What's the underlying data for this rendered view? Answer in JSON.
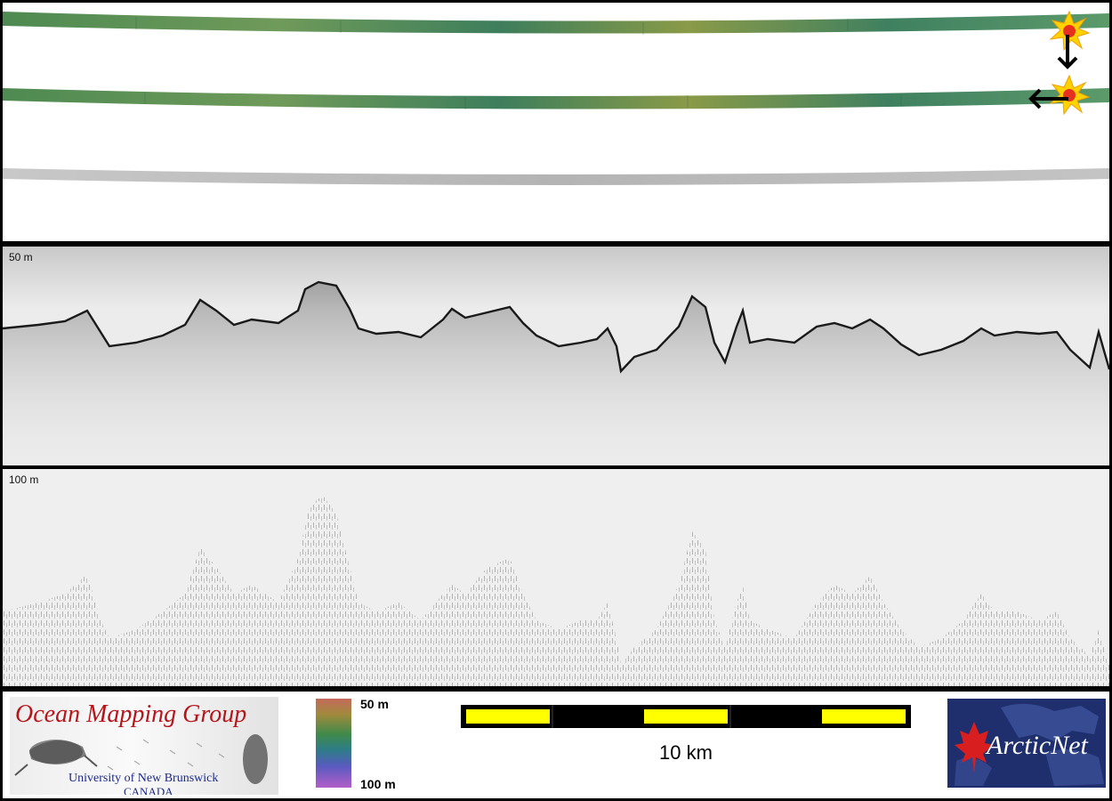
{
  "echograms": {
    "upper_depth_label": "50 m",
    "lower_depth_label": "100 m"
  },
  "legend": {
    "colorbar_top_label": "50 m",
    "colorbar_bottom_label": "100 m",
    "scale_label": "10 km"
  },
  "logos": {
    "omg_title": "Ocean Mapping Group",
    "omg_university": "University of New Brunswick",
    "omg_country": "CANADA",
    "arcticnet_name": "ArcticNet"
  },
  "colors": {
    "scale_bar_fill": "#ffff00",
    "scale_bar_segment": "#000000",
    "marker_star": "#ffd200",
    "marker_center": "#e8301e",
    "omg_title_color": "#b5161b",
    "arcticnet_background": "#1f2f6e"
  },
  "icons": {
    "start_marker": "star-burst-icon",
    "direction_down": "arrow-down-icon",
    "direction_left": "arrow-left-icon"
  }
}
